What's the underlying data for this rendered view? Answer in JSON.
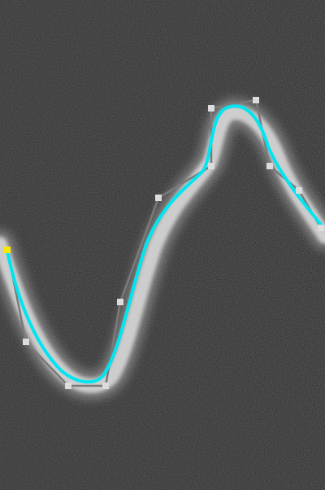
{
  "colors": {
    "background": "#2a2a2a",
    "noise_dark": "#1a1a1a",
    "noise_light": "#505050",
    "ridge": "#e8e8e8",
    "spline": "#00e5f0",
    "control_polyline": "#7a7a7a",
    "control_point": "#dcdcdc",
    "start_point": "#ffeb00"
  },
  "icons": {
    "control_point": "square-handle-icon",
    "start_point": "start-handle-icon"
  }
}
